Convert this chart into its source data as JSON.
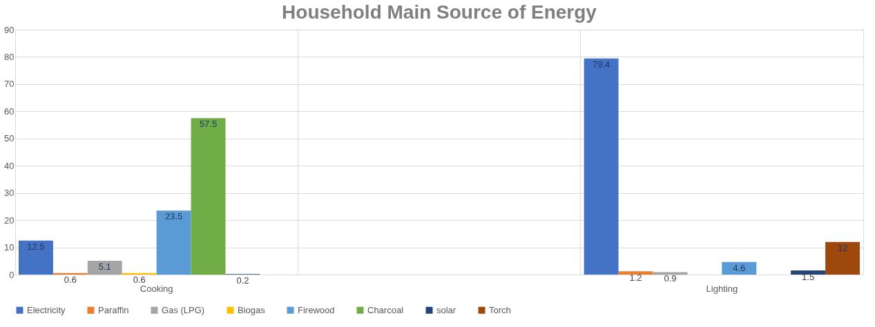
{
  "chart_data": {
    "type": "bar",
    "title": "Household Main Source of Energy",
    "categories": [
      "Cooking",
      null,
      "Lighting"
    ],
    "series": [
      {
        "name": "Electricity",
        "color": "#4472c4",
        "values": [
          12.5,
          null,
          79.4
        ],
        "value_labels": [
          "12.5",
          null,
          "79.4"
        ]
      },
      {
        "name": "Paraffin",
        "color": "#ed7d31",
        "values": [
          0.6,
          null,
          1.2
        ],
        "value_labels": [
          "0.6",
          null,
          "1.2"
        ]
      },
      {
        "name": "Gas (LPG)",
        "color": "#a5a5a5",
        "values": [
          5.1,
          null,
          0.9
        ],
        "value_labels": [
          "5.1",
          null,
          "0.9"
        ]
      },
      {
        "name": "Biogas",
        "color": "#ffc000",
        "values": [
          0.6,
          null,
          null
        ],
        "value_labels": [
          "0.6",
          null,
          null
        ]
      },
      {
        "name": "Firewood",
        "color": "#5b9bd5",
        "values": [
          23.5,
          null,
          4.6
        ],
        "value_labels": [
          "23.5",
          null,
          "4.6"
        ]
      },
      {
        "name": "Charcoal",
        "color": "#70ad47",
        "values": [
          57.5,
          null,
          null
        ],
        "value_labels": [
          "57.5",
          null,
          null
        ]
      },
      {
        "name": "solar",
        "color": "#264478",
        "values": [
          0.2,
          null,
          1.5
        ],
        "value_labels": [
          "0.2",
          null,
          "1.5"
        ]
      },
      {
        "name": "Torch",
        "color": "#9e480e",
        "values": [
          null,
          null,
          12
        ],
        "value_labels": [
          null,
          null,
          "12"
        ]
      }
    ],
    "ylim": [
      0,
      90
    ],
    "yticks": [
      0,
      10,
      20,
      30,
      40,
      50,
      60,
      70,
      80,
      90
    ],
    "grid": true,
    "legend": "bottom"
  }
}
